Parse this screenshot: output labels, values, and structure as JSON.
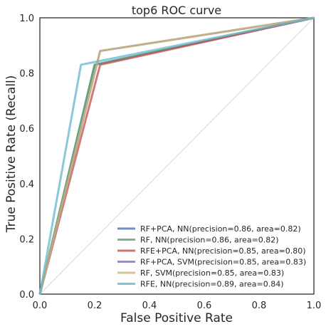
{
  "chart_data": {
    "type": "line",
    "title": "top6 ROC curve",
    "xlabel": "False Positive Rate",
    "ylabel": "True Positive Rate (Recall)",
    "xlim": [
      0.0,
      1.0
    ],
    "ylim": [
      0.0,
      1.0
    ],
    "xticks": [
      "0.0",
      "0.2",
      "0.4",
      "0.6",
      "0.8",
      "1.0"
    ],
    "yticks": [
      "0.0",
      "0.2",
      "0.4",
      "0.6",
      "0.8",
      "1.0"
    ],
    "grid": false,
    "legend_position": "lower-right",
    "diagonal_reference": true,
    "series": [
      {
        "name": "RF+PCA, NN(precision=0.86, area=0.82)",
        "color": "#4c72b0",
        "x": [
          0.0,
          0.2,
          1.0
        ],
        "y": [
          0.0,
          0.83,
          1.0
        ]
      },
      {
        "name": "RF, NN(precision=0.86, area=0.82)",
        "color": "#55a868",
        "x": [
          0.0,
          0.2,
          1.0
        ],
        "y": [
          0.0,
          0.83,
          1.0
        ]
      },
      {
        "name": "RFE+PCA, NN(precision=0.85, area=0.80)",
        "color": "#c44e52",
        "x": [
          0.0,
          0.22,
          1.0
        ],
        "y": [
          0.0,
          0.83,
          1.0
        ]
      },
      {
        "name": "RF+PCA, SVM(precision=0.85, area=0.83)",
        "color": "#8172b2",
        "x": [
          0.0,
          0.22,
          1.0
        ],
        "y": [
          0.0,
          0.88,
          1.0
        ]
      },
      {
        "name": "RF, SVM(precision=0.85, area=0.83)",
        "color": "#ccb974",
        "x": [
          0.0,
          0.22,
          1.0
        ],
        "y": [
          0.0,
          0.88,
          1.0
        ]
      },
      {
        "name": "RFE, NN(precision=0.89, area=0.84)",
        "color": "#64b5cd",
        "x": [
          0.0,
          0.15,
          1.0
        ],
        "y": [
          0.0,
          0.83,
          1.0
        ]
      }
    ]
  }
}
